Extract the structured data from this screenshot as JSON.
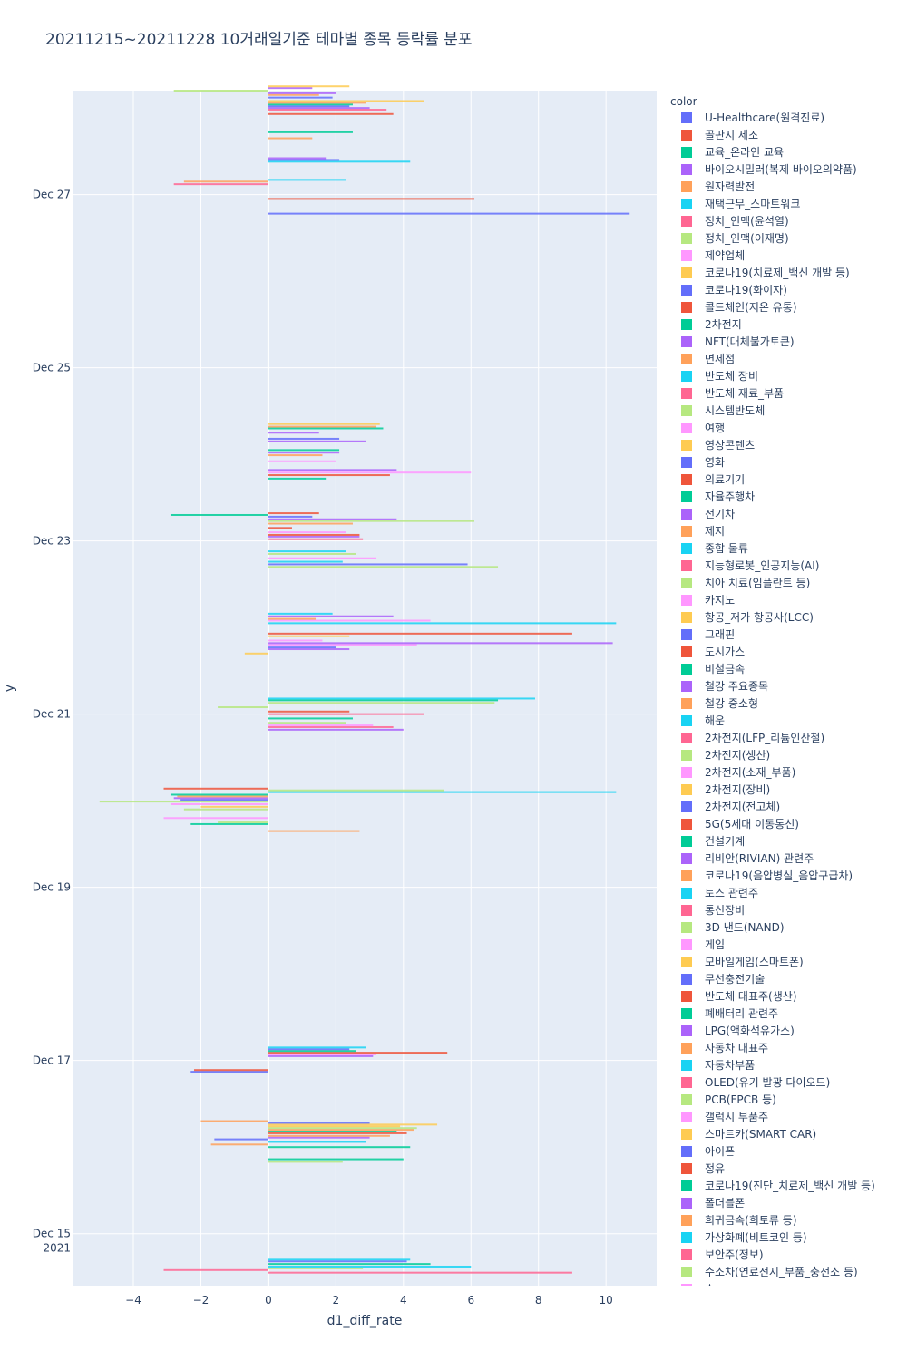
{
  "chart_data": {
    "type": "bar",
    "orientation": "horizontal",
    "title": "20211215~20211228 10거래일기준 테마별 종목 등락률 분포",
    "xlabel": "d1_diff_rate",
    "ylabel": "y",
    "xlim": [
      -5.8,
      11.5
    ],
    "x_ticks": [
      -4,
      -2,
      0,
      2,
      4,
      6,
      8,
      10
    ],
    "x_tick_labels": [
      "−4",
      "−2",
      "0",
      "2",
      "4",
      "6",
      "8",
      "10"
    ],
    "y_range_days": [
      14.4,
      28.2
    ],
    "y_ticks": [
      {
        "day": 15,
        "label": "Dec 15",
        "sub": "2021"
      },
      {
        "day": 17,
        "label": "Dec 17",
        "sub": ""
      },
      {
        "day": 19,
        "label": "Dec 19",
        "sub": ""
      },
      {
        "day": 21,
        "label": "Dec 21",
        "sub": ""
      },
      {
        "day": 23,
        "label": "Dec 23",
        "sub": ""
      },
      {
        "day": 25,
        "label": "Dec 25",
        "sub": ""
      },
      {
        "day": 27,
        "label": "Dec 27",
        "sub": ""
      }
    ],
    "legend_title": "color",
    "series": [
      {
        "name": "U-Healthcare(원격진료)",
        "color": "#636efa"
      },
      {
        "name": "골판지 제조",
        "color": "#EF553B"
      },
      {
        "name": "교육_온라인 교육",
        "color": "#00cc96"
      },
      {
        "name": "바이오시밀러(복제 바이오의약품)",
        "color": "#ab63fa"
      },
      {
        "name": "원자력발전",
        "color": "#FFA15A"
      },
      {
        "name": "재택근무_스마트워크",
        "color": "#19d3f3"
      },
      {
        "name": "정치_인맥(윤석열)",
        "color": "#FF6692"
      },
      {
        "name": "정치_인맥(이재명)",
        "color": "#B6E880"
      },
      {
        "name": "제약업체",
        "color": "#FF97FF"
      },
      {
        "name": "코로나19(치료제_백신 개발 등)",
        "color": "#FECB52"
      },
      {
        "name": "코로나19(화이자)",
        "color": "#636efa"
      },
      {
        "name": "콜드체인(저온 유통)",
        "color": "#EF553B"
      },
      {
        "name": "2차전지",
        "color": "#00cc96"
      },
      {
        "name": "NFT(대체불가토큰)",
        "color": "#ab63fa"
      },
      {
        "name": "면세점",
        "color": "#FFA15A"
      },
      {
        "name": "반도체 장비",
        "color": "#19d3f3"
      },
      {
        "name": "반도체 재료_부품",
        "color": "#FF6692"
      },
      {
        "name": "시스템반도체",
        "color": "#B6E880"
      },
      {
        "name": "여행",
        "color": "#FF97FF"
      },
      {
        "name": "영상콘텐츠",
        "color": "#FECB52"
      },
      {
        "name": "영화",
        "color": "#636efa"
      },
      {
        "name": "의료기기",
        "color": "#EF553B"
      },
      {
        "name": "자율주행차",
        "color": "#00cc96"
      },
      {
        "name": "전기차",
        "color": "#ab63fa"
      },
      {
        "name": "제지",
        "color": "#FFA15A"
      },
      {
        "name": "종합 물류",
        "color": "#19d3f3"
      },
      {
        "name": "지능형로봇_인공지능(AI)",
        "color": "#FF6692"
      },
      {
        "name": "치아 치료(임플란트 등)",
        "color": "#B6E880"
      },
      {
        "name": "카지노",
        "color": "#FF97FF"
      },
      {
        "name": "항공_저가 항공사(LCC)",
        "color": "#FECB52"
      },
      {
        "name": "그래핀",
        "color": "#636efa"
      },
      {
        "name": "도시가스",
        "color": "#EF553B"
      },
      {
        "name": "비철금속",
        "color": "#00cc96"
      },
      {
        "name": "철강 주요종목",
        "color": "#ab63fa"
      },
      {
        "name": "철강 중소형",
        "color": "#FFA15A"
      },
      {
        "name": "해운",
        "color": "#19d3f3"
      },
      {
        "name": "2차전지(LFP_리튬인산철)",
        "color": "#FF6692"
      },
      {
        "name": "2차전지(생산)",
        "color": "#B6E880"
      },
      {
        "name": "2차전지(소재_부품)",
        "color": "#FF97FF"
      },
      {
        "name": "2차전지(장비)",
        "color": "#FECB52"
      },
      {
        "name": "2차전지(전고체)",
        "color": "#636efa"
      },
      {
        "name": "5G(5세대 이동통신)",
        "color": "#EF553B"
      },
      {
        "name": "건설기계",
        "color": "#00cc96"
      },
      {
        "name": "리비안(RIVIAN) 관련주",
        "color": "#ab63fa"
      },
      {
        "name": "코로나19(음압병실_음압구급차)",
        "color": "#FFA15A"
      },
      {
        "name": "토스 관련주",
        "color": "#19d3f3"
      },
      {
        "name": "통신장비",
        "color": "#FF6692"
      },
      {
        "name": "3D 낸드(NAND)",
        "color": "#B6E880"
      },
      {
        "name": "게임",
        "color": "#FF97FF"
      },
      {
        "name": "모바일게임(스마트폰)",
        "color": "#FECB52"
      },
      {
        "name": "무선충전기술",
        "color": "#636efa"
      },
      {
        "name": "반도체 대표주(생산)",
        "color": "#EF553B"
      },
      {
        "name": "폐배터리 관련주",
        "color": "#00cc96"
      },
      {
        "name": "LPG(액화석유가스)",
        "color": "#ab63fa"
      },
      {
        "name": "자동차 대표주",
        "color": "#FFA15A"
      },
      {
        "name": "자동차부품",
        "color": "#19d3f3"
      },
      {
        "name": "OLED(유기 발광 다이오드)",
        "color": "#FF6692"
      },
      {
        "name": "PCB(FPCB 등)",
        "color": "#B6E880"
      },
      {
        "name": "갤럭시 부품주",
        "color": "#FF97FF"
      },
      {
        "name": "스마트카(SMART CAR)",
        "color": "#FECB52"
      },
      {
        "name": "아이폰",
        "color": "#636efa"
      },
      {
        "name": "정유",
        "color": "#EF553B"
      },
      {
        "name": "코로나19(진단_치료제_백신 개발 등)",
        "color": "#00cc96"
      },
      {
        "name": "폴더블폰",
        "color": "#ab63fa"
      },
      {
        "name": "희귀금속(희토류 등)",
        "color": "#FFA15A"
      },
      {
        "name": "가상화폐(비트코인 등)",
        "color": "#19d3f3"
      },
      {
        "name": "보안주(정보)",
        "color": "#FF6692"
      },
      {
        "name": "수소차(연료전지_부품_충전소 등)",
        "color": "#B6E880"
      },
      {
        "name": "수",
        "color": "#FF97FF"
      }
    ],
    "bars": [
      {
        "day": 14.55,
        "v": 9.0,
        "c": "#FF6692"
      },
      {
        "day": 14.58,
        "v": -3.1,
        "c": "#FF6692"
      },
      {
        "day": 14.6,
        "v": 2.8,
        "c": "#B6E880"
      },
      {
        "day": 14.62,
        "v": 6.0,
        "c": "#19d3f3"
      },
      {
        "day": 14.65,
        "v": 4.8,
        "c": "#00cc96"
      },
      {
        "day": 14.68,
        "v": 4.1,
        "c": "#636efa"
      },
      {
        "day": 14.7,
        "v": 4.2,
        "c": "#19d3f3"
      },
      {
        "day": 15.83,
        "v": 2.2,
        "c": "#B6E880"
      },
      {
        "day": 15.86,
        "v": 4.0,
        "c": "#00cc96"
      },
      {
        "day": 16.0,
        "v": 4.2,
        "c": "#00cc96"
      },
      {
        "day": 16.03,
        "v": -1.7,
        "c": "#FFA15A"
      },
      {
        "day": 16.06,
        "v": 2.9,
        "c": "#19d3f3"
      },
      {
        "day": 16.09,
        "v": -1.6,
        "c": "#636efa"
      },
      {
        "day": 16.11,
        "v": 3.0,
        "c": "#ab63fa"
      },
      {
        "day": 16.13,
        "v": 3.6,
        "c": "#FFA15A"
      },
      {
        "day": 16.16,
        "v": 4.1,
        "c": "#EF553B"
      },
      {
        "day": 16.18,
        "v": 3.8,
        "c": "#00cc96"
      },
      {
        "day": 16.2,
        "v": 4.3,
        "c": "#FFA15A"
      },
      {
        "day": 16.22,
        "v": 4.4,
        "c": "#B6E880"
      },
      {
        "day": 16.24,
        "v": 3.9,
        "c": "#FECB52"
      },
      {
        "day": 16.26,
        "v": 5.0,
        "c": "#FECB52"
      },
      {
        "day": 16.28,
        "v": 3.0,
        "c": "#636efa"
      },
      {
        "day": 16.3,
        "v": -2.0,
        "c": "#FFA15A"
      },
      {
        "day": 16.87,
        "v": -2.3,
        "c": "#636efa"
      },
      {
        "day": 16.89,
        "v": -2.2,
        "c": "#EF553B"
      },
      {
        "day": 17.05,
        "v": 3.1,
        "c": "#ab63fa"
      },
      {
        "day": 17.07,
        "v": 3.2,
        "c": "#FF97FF"
      },
      {
        "day": 17.09,
        "v": 5.3,
        "c": "#EF553B"
      },
      {
        "day": 17.11,
        "v": 2.6,
        "c": "#00cc96"
      },
      {
        "day": 17.13,
        "v": 2.4,
        "c": "#636efa"
      },
      {
        "day": 17.15,
        "v": 2.9,
        "c": "#19d3f3"
      },
      {
        "day": 19.65,
        "v": 2.7,
        "c": "#FFA15A"
      },
      {
        "day": 19.73,
        "v": -2.3,
        "c": "#00cc96"
      },
      {
        "day": 19.75,
        "v": -1.5,
        "c": "#B6E880"
      },
      {
        "day": 19.8,
        "v": -3.1,
        "c": "#FF97FF"
      },
      {
        "day": 19.9,
        "v": -2.5,
        "c": "#B6E880"
      },
      {
        "day": 19.93,
        "v": -2.0,
        "c": "#FECB52"
      },
      {
        "day": 19.96,
        "v": -2.9,
        "c": "#FF97FF"
      },
      {
        "day": 19.99,
        "v": -5.0,
        "c": "#B6E880"
      },
      {
        "day": 20.01,
        "v": -2.6,
        "c": "#636efa"
      },
      {
        "day": 20.03,
        "v": -2.8,
        "c": "#ab63fa"
      },
      {
        "day": 20.05,
        "v": -2.7,
        "c": "#FFA15A"
      },
      {
        "day": 20.07,
        "v": -2.9,
        "c": "#00cc96"
      },
      {
        "day": 20.1,
        "v": 10.3,
        "c": "#19d3f3"
      },
      {
        "day": 20.12,
        "v": 5.2,
        "c": "#B6E880"
      },
      {
        "day": 20.14,
        "v": -3.1,
        "c": "#EF553B"
      },
      {
        "day": 20.82,
        "v": 4.0,
        "c": "#ab63fa"
      },
      {
        "day": 20.85,
        "v": 3.7,
        "c": "#FF6692"
      },
      {
        "day": 20.87,
        "v": 3.1,
        "c": "#FF97FF"
      },
      {
        "day": 20.9,
        "v": 2.3,
        "c": "#B6E880"
      },
      {
        "day": 20.95,
        "v": 2.5,
        "c": "#00cc96"
      },
      {
        "day": 21.0,
        "v": 4.6,
        "c": "#FF6692"
      },
      {
        "day": 21.03,
        "v": 2.4,
        "c": "#EF553B"
      },
      {
        "day": 21.08,
        "v": -1.5,
        "c": "#B6E880"
      },
      {
        "day": 21.13,
        "v": 6.7,
        "c": "#B6E880"
      },
      {
        "day": 21.16,
        "v": 6.8,
        "c": "#00cc96"
      },
      {
        "day": 21.18,
        "v": 7.9,
        "c": "#19d3f3"
      },
      {
        "day": 21.7,
        "v": -0.7,
        "c": "#FECB52"
      },
      {
        "day": 21.75,
        "v": 2.4,
        "c": "#ab63fa"
      },
      {
        "day": 21.77,
        "v": 2.0,
        "c": "#636efa"
      },
      {
        "day": 21.8,
        "v": 4.4,
        "c": "#FF97FF"
      },
      {
        "day": 21.82,
        "v": 10.2,
        "c": "#ab63fa"
      },
      {
        "day": 21.85,
        "v": 1.6,
        "c": "#FF97FF"
      },
      {
        "day": 21.9,
        "v": 2.4,
        "c": "#FECB52"
      },
      {
        "day": 21.93,
        "v": 9.0,
        "c": "#EF553B"
      },
      {
        "day": 22.05,
        "v": 10.3,
        "c": "#19d3f3"
      },
      {
        "day": 22.08,
        "v": 4.8,
        "c": "#FF97FF"
      },
      {
        "day": 22.1,
        "v": 1.4,
        "c": "#FFA15A"
      },
      {
        "day": 22.13,
        "v": 3.7,
        "c": "#ab63fa"
      },
      {
        "day": 22.16,
        "v": 1.9,
        "c": "#19d3f3"
      },
      {
        "day": 22.7,
        "v": 6.8,
        "c": "#B6E880"
      },
      {
        "day": 22.73,
        "v": 5.9,
        "c": "#636efa"
      },
      {
        "day": 22.76,
        "v": 2.2,
        "c": "#19d3f3"
      },
      {
        "day": 22.8,
        "v": 3.2,
        "c": "#FF97FF"
      },
      {
        "day": 22.85,
        "v": 2.6,
        "c": "#B6E880"
      },
      {
        "day": 22.88,
        "v": 2.3,
        "c": "#19d3f3"
      },
      {
        "day": 23.02,
        "v": 2.8,
        "c": "#FF6692"
      },
      {
        "day": 23.05,
        "v": 2.7,
        "c": "#ab63fa"
      },
      {
        "day": 23.07,
        "v": 2.7,
        "c": "#EF553B"
      },
      {
        "day": 23.1,
        "v": 2.3,
        "c": "#FF97FF"
      },
      {
        "day": 23.15,
        "v": 0.7,
        "c": "#EF553B"
      },
      {
        "day": 23.2,
        "v": 2.5,
        "c": "#FFA15A"
      },
      {
        "day": 23.23,
        "v": 6.1,
        "c": "#B6E880"
      },
      {
        "day": 23.25,
        "v": 3.8,
        "c": "#ab63fa"
      },
      {
        "day": 23.28,
        "v": 1.3,
        "c": "#636efa"
      },
      {
        "day": 23.3,
        "v": -2.9,
        "c": "#00cc96"
      },
      {
        "day": 23.32,
        "v": 1.5,
        "c": "#EF553B"
      },
      {
        "day": 23.72,
        "v": 1.7,
        "c": "#00cc96"
      },
      {
        "day": 23.76,
        "v": 3.6,
        "c": "#EF553B"
      },
      {
        "day": 23.79,
        "v": 6.0,
        "c": "#FF97FF"
      },
      {
        "day": 23.82,
        "v": 3.8,
        "c": "#ab63fa"
      },
      {
        "day": 23.92,
        "v": 2.0,
        "c": "#FF97FF"
      },
      {
        "day": 23.99,
        "v": 1.6,
        "c": "#FFA15A"
      },
      {
        "day": 24.02,
        "v": 2.1,
        "c": "#ab63fa"
      },
      {
        "day": 24.05,
        "v": 2.1,
        "c": "#00cc96"
      },
      {
        "day": 24.15,
        "v": 2.9,
        "c": "#ab63fa"
      },
      {
        "day": 24.18,
        "v": 2.1,
        "c": "#636efa"
      },
      {
        "day": 24.25,
        "v": 1.5,
        "c": "#ab63fa"
      },
      {
        "day": 24.3,
        "v": 3.4,
        "c": "#00cc96"
      },
      {
        "day": 24.32,
        "v": 3.2,
        "c": "#FFA15A"
      },
      {
        "day": 24.35,
        "v": 3.3,
        "c": "#FECB52"
      },
      {
        "day": 26.78,
        "v": 10.7,
        "c": "#636efa"
      },
      {
        "day": 26.95,
        "v": 6.1,
        "c": "#EF553B"
      },
      {
        "day": 27.12,
        "v": -2.8,
        "c": "#FF6692"
      },
      {
        "day": 27.15,
        "v": -2.5,
        "c": "#FFA15A"
      },
      {
        "day": 27.17,
        "v": 2.3,
        "c": "#19d3f3"
      },
      {
        "day": 27.38,
        "v": 4.2,
        "c": "#19d3f3"
      },
      {
        "day": 27.4,
        "v": 2.1,
        "c": "#636efa"
      },
      {
        "day": 27.42,
        "v": 1.7,
        "c": "#ab63fa"
      },
      {
        "day": 27.65,
        "v": 1.3,
        "c": "#FFA15A"
      },
      {
        "day": 27.72,
        "v": 2.5,
        "c": "#00cc96"
      },
      {
        "day": 27.93,
        "v": 3.7,
        "c": "#EF553B"
      },
      {
        "day": 27.98,
        "v": 3.5,
        "c": "#FF6692"
      },
      {
        "day": 28.0,
        "v": 3.0,
        "c": "#ab63fa"
      },
      {
        "day": 28.02,
        "v": 2.4,
        "c": "#636efa"
      },
      {
        "day": 28.04,
        "v": 2.5,
        "c": "#00cc96"
      },
      {
        "day": 28.06,
        "v": 2.9,
        "c": "#FFA15A"
      },
      {
        "day": 28.08,
        "v": 4.6,
        "c": "#FECB52"
      },
      {
        "day": 28.12,
        "v": 1.9,
        "c": "#636efa"
      },
      {
        "day": 28.15,
        "v": 1.5,
        "c": "#FFA15A"
      },
      {
        "day": 28.17,
        "v": 2.0,
        "c": "#ab63fa"
      },
      {
        "day": 28.2,
        "v": -2.8,
        "c": "#B6E880"
      },
      {
        "day": 28.23,
        "v": 1.3,
        "c": "#ab63fa"
      },
      {
        "day": 28.25,
        "v": 2.4,
        "c": "#FECB52"
      }
    ]
  }
}
